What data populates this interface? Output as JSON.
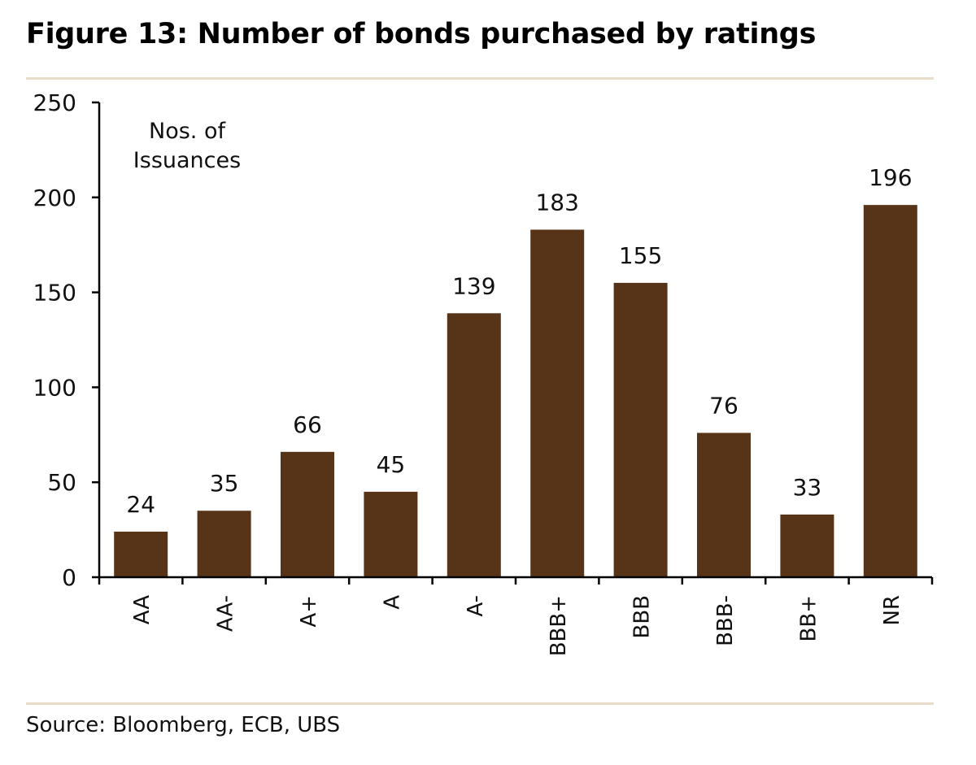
{
  "figure": {
    "title": "Figure 13: Number of bonds purchased by ratings",
    "source": "Source: Bloomberg, ECB, UBS"
  },
  "colors": {
    "bar": "#573418",
    "axis": "#000000",
    "rule": "#e8dcc8"
  },
  "chart_data": {
    "type": "bar",
    "title": "Number of bonds purchased by ratings",
    "xlabel": "",
    "ylabel": "Nos. of Issuances",
    "unit_label_lines": [
      "Nos. of",
      "Issuances"
    ],
    "categories": [
      "AA",
      "AA-",
      "A+",
      "A",
      "A-",
      "BBB+",
      "BBB",
      "BBB-",
      "BB+",
      "NR"
    ],
    "values": [
      24,
      35,
      66,
      45,
      139,
      183,
      155,
      76,
      33,
      196
    ],
    "ylim": [
      0,
      250
    ],
    "yticks": [
      0,
      50,
      100,
      150,
      200,
      250
    ],
    "grid": false,
    "legend": "none"
  }
}
